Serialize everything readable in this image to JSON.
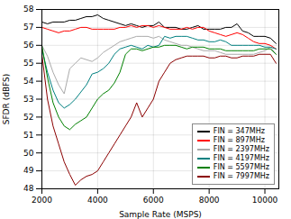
{
  "chart_data": {
    "type": "line",
    "xlabel": "Sample Rate (MSPS)",
    "ylabel": "SFDR (dBFS)",
    "xlim": [
      2000,
      10500
    ],
    "ylim": [
      48,
      58
    ],
    "xticks": [
      2000,
      4000,
      6000,
      8000,
      10000
    ],
    "yticks": [
      48,
      49,
      50,
      51,
      52,
      53,
      54,
      55,
      56,
      57,
      58
    ],
    "grid": true,
    "legend": "lower right",
    "x": [
      2000,
      2200,
      2400,
      2600,
      2800,
      3000,
      3200,
      3400,
      3600,
      3800,
      4000,
      4200,
      4400,
      4600,
      4800,
      5000,
      5200,
      5400,
      5600,
      5800,
      6000,
      6200,
      6400,
      6600,
      6800,
      7000,
      7200,
      7400,
      7600,
      7800,
      8000,
      8200,
      8400,
      8600,
      8800,
      9000,
      9200,
      9400,
      9600,
      9800,
      10000,
      10200,
      10400
    ],
    "series": [
      {
        "name": "FIN = 347MHz",
        "color": "#000000",
        "values": [
          57.3,
          57.2,
          57.3,
          57.3,
          57.3,
          57.4,
          57.4,
          57.5,
          57.6,
          57.6,
          57.7,
          57.5,
          57.4,
          57.3,
          57.2,
          57.1,
          57.2,
          57.1,
          57.0,
          57.1,
          57.1,
          57.3,
          57.0,
          57.0,
          57.0,
          56.9,
          56.9,
          57.0,
          57.1,
          56.9,
          56.9,
          56.9,
          56.9,
          57.0,
          57.0,
          57.2,
          56.8,
          56.7,
          56.5,
          56.5,
          56.5,
          56.4,
          56.1
        ]
      },
      {
        "name": "FIN = 897MHz",
        "color": "#ff0000",
        "values": [
          57.0,
          56.9,
          56.8,
          56.7,
          56.8,
          56.8,
          56.9,
          57.0,
          57.0,
          56.9,
          56.9,
          56.9,
          56.9,
          56.9,
          57.0,
          57.0,
          57.1,
          57.0,
          57.1,
          57.1,
          57.0,
          57.1,
          57.0,
          56.9,
          56.9,
          56.9,
          57.0,
          56.9,
          57.0,
          57.0,
          56.8,
          56.7,
          56.6,
          56.5,
          56.6,
          56.7,
          56.6,
          56.4,
          56.2,
          56.1,
          56.1,
          56.0,
          55.8
        ]
      },
      {
        "name": "FIN = 2397MHz",
        "color": "#aaaaaa",
        "values": [
          56.0,
          55.4,
          54.5,
          53.8,
          53.3,
          54.7,
          55.0,
          55.3,
          55.2,
          55.1,
          55.3,
          55.6,
          55.8,
          56.0,
          56.2,
          56.3,
          56.4,
          56.5,
          56.5,
          56.5,
          56.4,
          56.5,
          56.3,
          56.2,
          56.1,
          56.0,
          56.0,
          55.9,
          55.8,
          55.7,
          55.7,
          55.7,
          55.6,
          55.5,
          55.5,
          55.5,
          55.5,
          55.5,
          55.5,
          55.6,
          55.7,
          55.9,
          55.5
        ]
      },
      {
        "name": "FIN = 4197MHz",
        "color": "#008080",
        "values": [
          55.8,
          54.5,
          53.5,
          52.8,
          52.5,
          52.7,
          53.0,
          53.4,
          53.8,
          54.4,
          54.5,
          54.7,
          55.0,
          55.5,
          55.8,
          55.9,
          56.0,
          55.9,
          55.8,
          56.0,
          55.9,
          56.0,
          56.5,
          56.4,
          56.5,
          56.5,
          56.5,
          56.4,
          56.3,
          56.3,
          56.2,
          56.2,
          56.3,
          56.2,
          56.0,
          56.0,
          56.0,
          56.0,
          56.0,
          56.0,
          55.9,
          55.9,
          55.8
        ]
      },
      {
        "name": "FIN = 5597MHz",
        "color": "#008000",
        "values": [
          56.0,
          54.2,
          52.8,
          52.0,
          51.5,
          51.3,
          51.6,
          51.8,
          52.0,
          52.5,
          53.0,
          53.3,
          53.5,
          53.9,
          54.5,
          55.5,
          55.8,
          55.8,
          55.7,
          55.8,
          55.9,
          55.9,
          56.0,
          56.0,
          56.0,
          55.9,
          55.8,
          55.9,
          55.9,
          55.9,
          55.8,
          55.8,
          55.8,
          55.7,
          55.7,
          55.7,
          55.7,
          55.7,
          55.7,
          55.8,
          55.8,
          55.8,
          55.5
        ]
      },
      {
        "name": "FIN = 7997MHz",
        "color": "#8b0000",
        "values": [
          55.5,
          53.0,
          51.5,
          50.5,
          49.5,
          48.8,
          48.2,
          48.5,
          48.7,
          48.8,
          49.0,
          49.5,
          50.0,
          50.5,
          51.0,
          51.5,
          52.0,
          52.8,
          52.0,
          52.5,
          53.0,
          54.0,
          54.5,
          55.0,
          55.2,
          55.3,
          55.4,
          55.4,
          55.4,
          55.4,
          55.3,
          55.3,
          55.4,
          55.4,
          55.3,
          55.3,
          55.4,
          55.4,
          55.4,
          55.5,
          55.5,
          55.5,
          55.0
        ]
      }
    ]
  }
}
